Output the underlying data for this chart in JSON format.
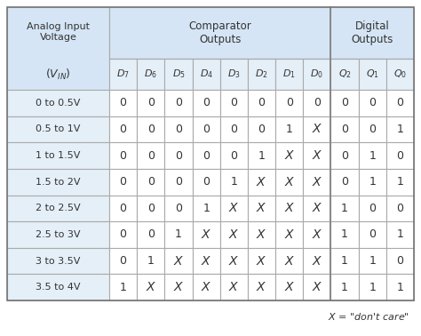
{
  "voltage_ranges": [
    "0 to 0.5V",
    "0.5 to 1V",
    "1 to 1.5V",
    "1.5 to 2V",
    "2 to 2.5V",
    "2.5 to 3V",
    "3 to 3.5V",
    "3.5 to 4V"
  ],
  "table_data": [
    [
      "0",
      "0",
      "0",
      "0",
      "0",
      "0",
      "0",
      "0",
      "0",
      "0",
      "0"
    ],
    [
      "0",
      "0",
      "0",
      "0",
      "0",
      "0",
      "1",
      "X",
      "0",
      "0",
      "1"
    ],
    [
      "0",
      "0",
      "0",
      "0",
      "0",
      "1",
      "X",
      "X",
      "0",
      "1",
      "0"
    ],
    [
      "0",
      "0",
      "0",
      "0",
      "1",
      "X",
      "X",
      "X",
      "0",
      "1",
      "1"
    ],
    [
      "0",
      "0",
      "0",
      "1",
      "X",
      "X",
      "X",
      "X",
      "1",
      "0",
      "0"
    ],
    [
      "0",
      "0",
      "1",
      "X",
      "X",
      "X",
      "X",
      "X",
      "1",
      "0",
      "1"
    ],
    [
      "0",
      "1",
      "X",
      "X",
      "X",
      "X",
      "X",
      "X",
      "1",
      "1",
      "0"
    ],
    [
      "1",
      "X",
      "X",
      "X",
      "X",
      "X",
      "X",
      "X",
      "1",
      "1",
      "1"
    ]
  ],
  "header_bg": "#d5e5f5",
  "subheader_bg": "#e5eff8",
  "data_bg_white": "#ffffff",
  "border_color": "#aaaaaa",
  "text_color": "#333333",
  "footnote": "X = \"don't care\"",
  "bg_color": "#ffffff",
  "analog_header": "Analog Input\nVoltage",
  "vin_label": "$(V_{IN})$",
  "comparator_header": "Comparator\nOutputs",
  "digital_header": "Digital\nOutputs",
  "comp_col_labels": [
    "$D_7$",
    "$D_6$",
    "$D_5$",
    "$D_4$",
    "$D_3$",
    "$D_2$",
    "$D_1$",
    "$D_0$"
  ],
  "dig_col_labels": [
    "$Q_2$",
    "$Q_1$",
    "$Q_0$"
  ]
}
